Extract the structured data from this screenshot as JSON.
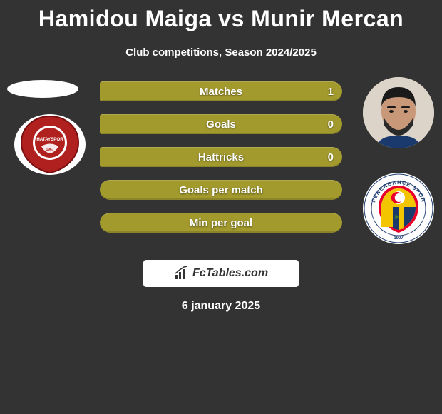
{
  "title": "Hamidou Maiga vs Munir Mercan",
  "subtitle": "Club competitions, Season 2024/2025",
  "date": "6 january 2025",
  "footer_brand": "FcTables.com",
  "colors": {
    "bar_olive": "#a39a2e",
    "bar_olive_dark": "#8b8428",
    "hatay_red": "#b0201f",
    "fener_blue": "#1a3a6e",
    "fener_yellow": "#f2c500"
  },
  "bars": [
    {
      "label": "Matches",
      "value_right": "1",
      "left_pct": 1,
      "right_pct": 99
    },
    {
      "label": "Goals",
      "value_right": "0",
      "left_pct": 1,
      "right_pct": 99
    },
    {
      "label": "Hattricks",
      "value_right": "0",
      "left_pct": 1,
      "right_pct": 99
    },
    {
      "label": "Goals per match",
      "value_right": "",
      "full": true
    },
    {
      "label": "Min per goal",
      "value_right": "",
      "full": true
    }
  ],
  "club_left_name": "HATAYSPOR",
  "club_left_year": "1967"
}
